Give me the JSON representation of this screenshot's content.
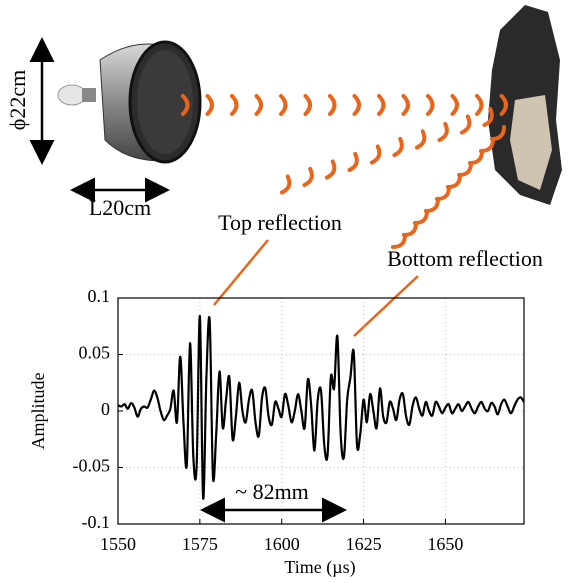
{
  "chart_data": {
    "type": "line",
    "xlabel": "Time (µs)",
    "ylabel": "Amplitude",
    "annotations": [
      "Top reflection",
      "Bottom reflection",
      "~ 82mm",
      "ϕ22cm",
      "L20cm"
    ],
    "xlim": [
      1550,
      1674
    ],
    "xticks": [
      1550,
      1575,
      1600,
      1625,
      1650
    ],
    "ylim": [
      -0.1,
      0.1
    ],
    "yticks": [
      -0.1,
      -0.05,
      0,
      0.05,
      0.1
    ],
    "grid": true,
    "series": [
      {
        "color": "#000000",
        "x": [
          1550,
          1551,
          1552,
          1553,
          1554,
          1555,
          1556,
          1557,
          1558,
          1559,
          1560,
          1561,
          1562,
          1563,
          1564,
          1565,
          1566,
          1567,
          1568,
          1569,
          1570,
          1571,
          1572,
          1573,
          1574,
          1575,
          1576,
          1577,
          1578,
          1579,
          1580,
          1581,
          1582,
          1583,
          1584,
          1585,
          1586,
          1587,
          1588,
          1589,
          1590,
          1591,
          1592,
          1593,
          1594,
          1595,
          1596,
          1597,
          1598,
          1599,
          1600,
          1601,
          1602,
          1603,
          1604,
          1605,
          1606,
          1607,
          1608,
          1609,
          1610,
          1611,
          1612,
          1613,
          1614,
          1615,
          1616,
          1617,
          1618,
          1619,
          1620,
          1621,
          1622,
          1623,
          1624,
          1625,
          1626,
          1627,
          1628,
          1629,
          1630,
          1631,
          1632,
          1633,
          1634,
          1635,
          1636,
          1637,
          1638,
          1639,
          1640,
          1641,
          1642,
          1643,
          1644,
          1645,
          1646,
          1647,
          1648,
          1649,
          1650,
          1651,
          1652,
          1653,
          1654,
          1655,
          1656,
          1657,
          1658,
          1659,
          1660,
          1661,
          1662,
          1663,
          1664,
          1665,
          1666,
          1667,
          1668,
          1669,
          1670,
          1671,
          1672,
          1673,
          1674
        ],
        "values": [
          0.005,
          0.004,
          0.006,
          0.002,
          0.007,
          0.003,
          -0.005,
          0.002,
          0.004,
          0.003,
          0.01,
          0.018,
          0.012,
          0.0,
          -0.008,
          -0.004,
          0.002,
          0.018,
          -0.01,
          0.048,
          -0.01,
          -0.048,
          0.06,
          -0.04,
          -0.05,
          0.084,
          -0.077,
          0.03,
          0.08,
          -0.058,
          -0.02,
          0.035,
          -0.015,
          0.01,
          0.03,
          -0.025,
          -0.005,
          0.025,
          0.0,
          -0.01,
          0.01,
          0.018,
          -0.01,
          -0.022,
          0.012,
          0.02,
          -0.005,
          -0.012,
          0.008,
          0.002,
          -0.005,
          0.015,
          0.005,
          -0.01,
          0.0,
          0.015,
          0.0,
          -0.015,
          0.028,
          0.005,
          -0.035,
          0.01,
          0.018,
          -0.03,
          -0.039,
          0.03,
          0.02,
          0.066,
          -0.02,
          -0.041,
          0.01,
          0.03,
          0.052,
          -0.03,
          -0.02,
          0.01,
          -0.01,
          0.015,
          0.0,
          -0.015,
          0.02,
          -0.005,
          -0.01,
          0.008,
          0.002,
          -0.008,
          0.01,
          0.015,
          -0.005,
          -0.012,
          0.005,
          0.012,
          0.002,
          -0.004,
          0.008,
          0.0,
          -0.004,
          0.008,
          0.004,
          -0.002,
          0.003,
          0.006,
          -0.002,
          0.002,
          0.006,
          0.0,
          0.004,
          0.008,
          0.002,
          -0.002,
          0.004,
          0.008,
          0.002,
          0.0,
          0.007,
          0.004,
          -0.003,
          0.006,
          0.01,
          0.004,
          -0.002,
          0.004,
          0.01,
          0.012,
          0.008
        ]
      }
    ]
  }
}
